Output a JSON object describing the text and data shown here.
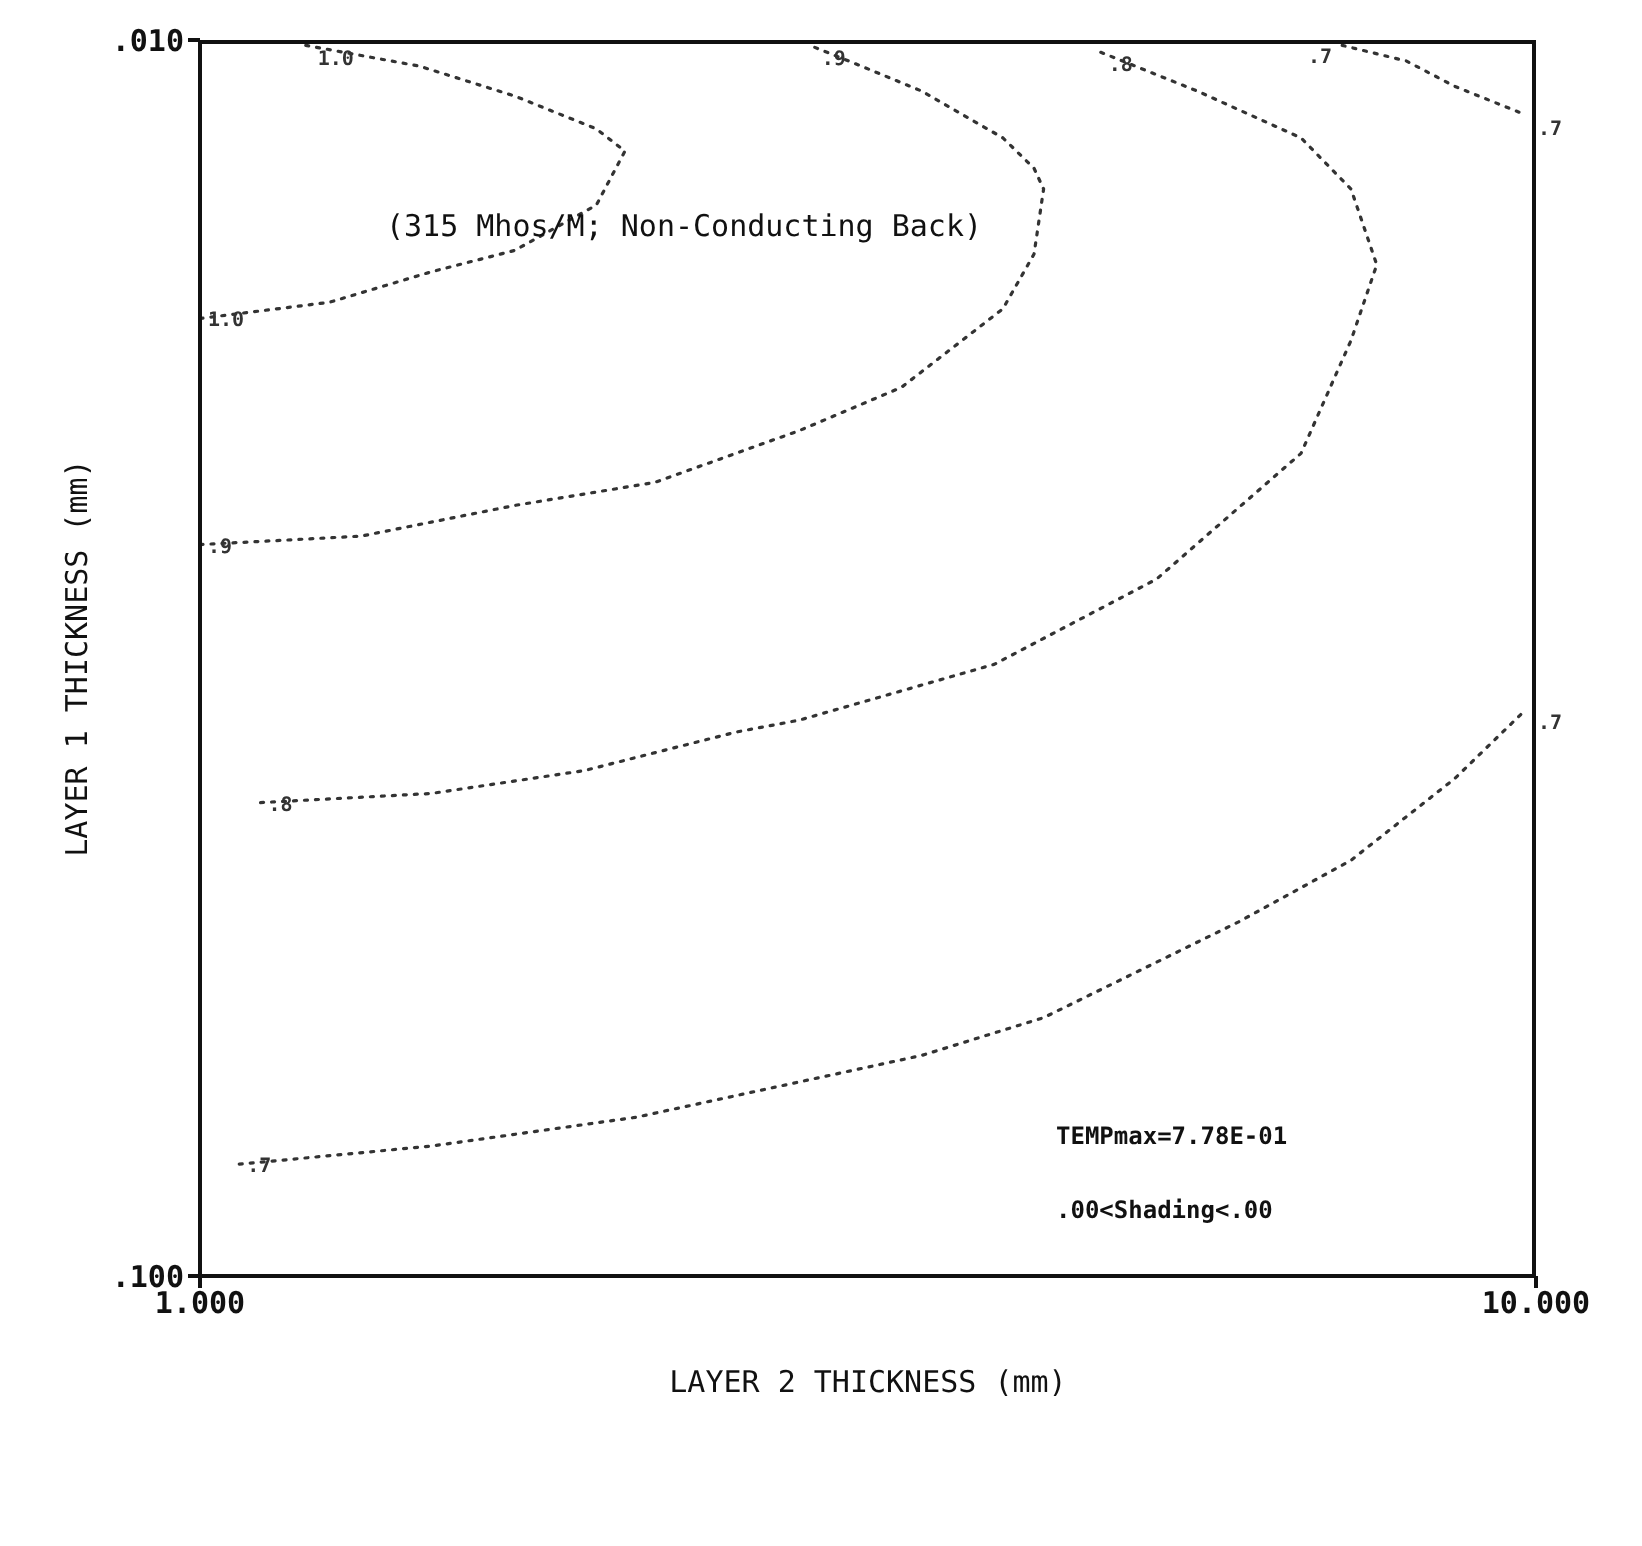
{
  "chart_data": {
    "type": "line",
    "xlabel": "LAYER 2 THICKNESS (mm)",
    "ylabel": "LAYER 1 THICKNESS (mm)",
    "log": "xy",
    "xlim": [
      1,
      10
    ],
    "ylim": [
      0.1,
      0.01
    ],
    "xticks": [
      {
        "value": 1,
        "label": "1.000"
      },
      {
        "value": 10,
        "label": "10.000"
      }
    ],
    "yticks": [
      {
        "value": 0.1,
        "label": ".100"
      },
      {
        "value": 0.01,
        "label": ".010"
      }
    ],
    "grid": false,
    "legend": false,
    "marker": "none",
    "line_style": "dotted",
    "annotations": [
      "(315 Mhos/M; Non-Conducting Back)",
      "TEMPmax=7.78E-01",
      ".00<Shading<.00"
    ],
    "series": [
      {
        "name": "1.0",
        "color": "#333333",
        "x": [
          1.0,
          1.25,
          1.49,
          1.72,
          1.98,
          2.08,
          1.98,
          1.72,
          1.46,
          1.2
        ],
        "values": [
          0.0168,
          0.0163,
          0.0154,
          0.0148,
          0.0136,
          0.0123,
          0.0118,
          0.0111,
          0.0105,
          0.0101
        ]
      },
      {
        "name": ".9",
        "color": "#333333",
        "x": [
          1.0,
          1.32,
          1.72,
          2.19,
          2.81,
          3.35,
          3.99,
          4.21,
          4.28,
          4.21,
          3.99,
          3.47,
          3.06,
          2.86
        ],
        "values": [
          0.0256,
          0.0252,
          0.0238,
          0.0228,
          0.0207,
          0.0191,
          0.0165,
          0.0149,
          0.0132,
          0.0127,
          0.012,
          0.011,
          0.0104,
          0.0101
        ]
      },
      {
        "name": ".8",
        "color": "#333333",
        "x": [
          1.11,
          1.49,
          1.94,
          2.52,
          2.81,
          3.93,
          5.2,
          6.67,
          7.27,
          7.6,
          7.27,
          6.67,
          5.58,
          4.69
        ],
        "values": [
          0.0414,
          0.0407,
          0.039,
          0.0363,
          0.0355,
          0.032,
          0.0273,
          0.0216,
          0.0175,
          0.0152,
          0.0132,
          0.012,
          0.011,
          0.0102
        ]
      },
      {
        "name": ".7",
        "color": "#333333",
        "x": [
          1.07,
          1.49,
          2.12,
          3.47,
          4.28,
          5.99,
          7.27,
          8.69,
          9.83
        ],
        "values": [
          0.0812,
          0.0785,
          0.0744,
          0.0663,
          0.0618,
          0.0517,
          0.0461,
          0.0396,
          0.0348
        ]
      },
      {
        "name": ".7",
        "color": "#333333",
        "x": [
          7.16,
          8.0,
          8.69,
          9.83
        ],
        "values": [
          0.0101,
          0.0104,
          0.0109,
          0.0115
        ]
      }
    ]
  }
}
